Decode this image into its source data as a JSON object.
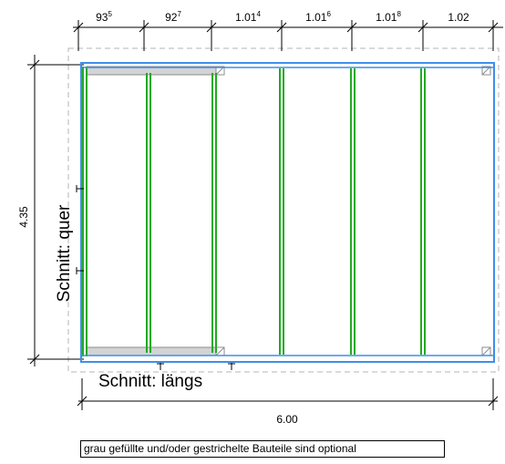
{
  "dimensions": {
    "top": [
      {
        "main": "93",
        "sup": "5"
      },
      {
        "main": "92",
        "sup": "7"
      },
      {
        "main": "1.01",
        "sup": "4"
      },
      {
        "main": "1.01",
        "sup": "6"
      },
      {
        "main": "1.01",
        "sup": "8"
      },
      {
        "main": "1.02",
        "sup": ""
      }
    ],
    "left": "4.35",
    "bottom": "6.00"
  },
  "labels": {
    "section_cross": "Schnitt: quer",
    "section_long": "Schnitt: längs"
  },
  "note": "grau gefüllte und/oder gestrichelte Bauteile sind optional",
  "colors": {
    "frame": "#3f8fe8",
    "post": "#22aa22",
    "optional_fill": "#d3d3d3",
    "dashed_outline": "#b4b4b4"
  }
}
